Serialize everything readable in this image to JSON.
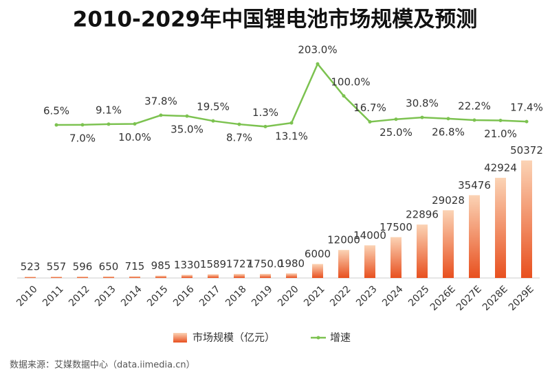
{
  "chart_data": {
    "type": "bar",
    "title": "2010-2029年中国锂电池市场规模及预测",
    "source": "数据来源：艾媒数据中心（data.iimedia.cn）",
    "categories": [
      "2010",
      "2011",
      "2012",
      "2013",
      "2014",
      "2015",
      "2016",
      "2017",
      "2018",
      "2019",
      "2020",
      "2021",
      "2022",
      "2023",
      "2024",
      "2025",
      "2026E",
      "2027E",
      "2028E",
      "2029E"
    ],
    "ylim": [
      0,
      60000
    ],
    "y2lim": [
      0,
      210
    ],
    "legend": "bottom",
    "series": [
      {
        "name": "市场规模（亿元）",
        "type": "bar",
        "color": "#ec6a35",
        "values": [
          523,
          557,
          596,
          650,
          715,
          985,
          1330,
          1589,
          1727,
          1750,
          1980,
          6000,
          12000,
          14000,
          17500,
          22896,
          29028,
          35476,
          42924,
          50372
        ],
        "value_labels": [
          "523",
          "557",
          "596",
          "650",
          "715",
          "985",
          "1330",
          "1589",
          "1727",
          "1750.0",
          "1980",
          "6000",
          "12000",
          "14000",
          "17500",
          "22896",
          "29028",
          "35476",
          "42924",
          "50372"
        ]
      },
      {
        "name": "增速",
        "type": "line",
        "axis": "y2",
        "color": "#7cc250",
        "values": [
          null,
          6.5,
          7.0,
          9.1,
          10.0,
          37.8,
          35.0,
          19.5,
          8.7,
          1.3,
          13.1,
          203.0,
          100.0,
          16.7,
          25.0,
          30.8,
          26.8,
          22.2,
          21.0,
          17.4
        ],
        "value_labels": [
          null,
          "6.5%",
          "7.0%",
          "9.1%",
          "10.0%",
          "37.8%",
          "35.0%",
          "19.5%",
          "8.7%",
          "1.3%",
          "13.1%",
          "203.0%",
          "100.0%",
          "16.7%",
          "25.0%",
          "30.8%",
          "26.8%",
          "22.2%",
          "21.0%",
          "17.4%"
        ]
      }
    ]
  }
}
